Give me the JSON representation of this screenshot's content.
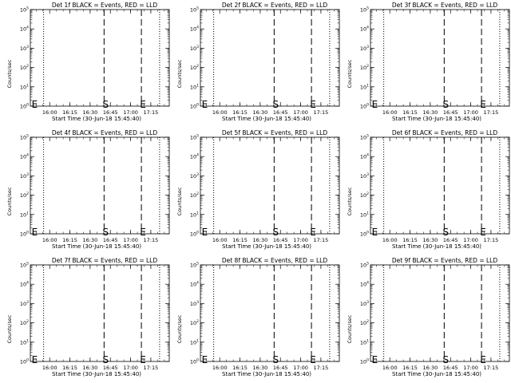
{
  "figure": {
    "background": "#ffffff",
    "foreground": "#000000"
  },
  "chart_data": [
    {
      "type": "line",
      "title": "Det 1f BLACK = Events, RED = LLD",
      "xlabel": "Start Time (30-Jun-18 15:45:40)",
      "ylabel": "Counts/sec",
      "x_tick_labels": [
        "16:00",
        "16:15",
        "16:30",
        "16:45",
        "17:00",
        "17:15"
      ],
      "xlim": [
        "15:45:40",
        "17:28:40"
      ],
      "y_scale": "log",
      "ylim": [
        1,
        100000
      ],
      "y_tick_labels": [
        "10^0",
        "10^1",
        "10^2",
        "10^3",
        "10^4",
        "10^5"
      ],
      "series": [],
      "markers": [
        {
          "label": "E",
          "time": "15:46:00",
          "style": "text"
        },
        {
          "label": "",
          "time": "15:55:30",
          "style": "dotted"
        },
        {
          "label": "S",
          "time": "16:40:20",
          "style": "dashed"
        },
        {
          "label": "E",
          "time": "17:08:00",
          "style": "dashed"
        },
        {
          "label": "",
          "time": "17:21:30",
          "style": "dotted"
        }
      ],
      "grid": false
    },
    {
      "type": "line",
      "title": "Det 2f BLACK = Events, RED = LLD",
      "xlabel": "Start Time (30-Jun-18 15:45:40)",
      "ylabel": "Counts/sec",
      "x_tick_labels": [
        "16:00",
        "16:15",
        "16:30",
        "16:45",
        "17:00",
        "17:15"
      ],
      "xlim": [
        "15:45:40",
        "17:28:40"
      ],
      "y_scale": "log",
      "ylim": [
        1,
        100000
      ],
      "y_tick_labels": [
        "10^0",
        "10^1",
        "10^2",
        "10^3",
        "10^4",
        "10^5"
      ],
      "series": [],
      "markers": [
        {
          "label": "E",
          "time": "15:46:00",
          "style": "text"
        },
        {
          "label": "",
          "time": "15:55:30",
          "style": "dotted"
        },
        {
          "label": "S",
          "time": "16:40:20",
          "style": "dashed"
        },
        {
          "label": "E",
          "time": "17:08:00",
          "style": "dashed"
        },
        {
          "label": "",
          "time": "17:21:30",
          "style": "dotted"
        }
      ],
      "grid": false
    },
    {
      "type": "line",
      "title": "Det 3f BLACK = Events, RED = LLD",
      "xlabel": "Start Time (30-Jun-18 15:45:40)",
      "ylabel": "Counts/sec",
      "x_tick_labels": [
        "16:00",
        "16:15",
        "16:30",
        "16:45",
        "17:00",
        "17:15"
      ],
      "xlim": [
        "15:45:40",
        "17:28:40"
      ],
      "y_scale": "log",
      "ylim": [
        1,
        100000
      ],
      "y_tick_labels": [
        "10^0",
        "10^1",
        "10^2",
        "10^3",
        "10^4",
        "10^5"
      ],
      "series": [],
      "markers": [
        {
          "label": "E",
          "time": "15:46:00",
          "style": "text"
        },
        {
          "label": "",
          "time": "15:55:30",
          "style": "dotted"
        },
        {
          "label": "S",
          "time": "16:40:20",
          "style": "dashed"
        },
        {
          "label": "E",
          "time": "17:08:00",
          "style": "dashed"
        },
        {
          "label": "",
          "time": "17:21:30",
          "style": "dotted"
        }
      ],
      "grid": false
    },
    {
      "type": "line",
      "title": "Det 4f BLACK = Events, RED = LLD",
      "xlabel": "Start Time (30-Jun-18 15:45:40)",
      "ylabel": "Counts/sec",
      "x_tick_labels": [
        "16:00",
        "16:15",
        "16:30",
        "16:45",
        "17:00",
        "17:15"
      ],
      "xlim": [
        "15:45:40",
        "17:28:40"
      ],
      "y_scale": "log",
      "ylim": [
        1,
        100000
      ],
      "y_tick_labels": [
        "10^0",
        "10^1",
        "10^2",
        "10^3",
        "10^4",
        "10^5"
      ],
      "series": [],
      "markers": [
        {
          "label": "E",
          "time": "15:46:00",
          "style": "text"
        },
        {
          "label": "",
          "time": "15:55:30",
          "style": "dotted"
        },
        {
          "label": "S",
          "time": "16:40:20",
          "style": "dashed"
        },
        {
          "label": "E",
          "time": "17:08:00",
          "style": "dashed"
        },
        {
          "label": "",
          "time": "17:21:30",
          "style": "dotted"
        }
      ],
      "grid": false
    },
    {
      "type": "line",
      "title": "Det 5f BLACK = Events, RED = LLD",
      "xlabel": "Start Time (30-Jun-18 15:45:40)",
      "ylabel": "Counts/sec",
      "x_tick_labels": [
        "16:00",
        "16:15",
        "16:30",
        "16:45",
        "17:00",
        "17:15"
      ],
      "xlim": [
        "15:45:40",
        "17:28:40"
      ],
      "y_scale": "log",
      "ylim": [
        1,
        100000
      ],
      "y_tick_labels": [
        "10^0",
        "10^1",
        "10^2",
        "10^3",
        "10^4",
        "10^5"
      ],
      "series": [],
      "markers": [
        {
          "label": "E",
          "time": "15:46:00",
          "style": "text"
        },
        {
          "label": "",
          "time": "15:55:30",
          "style": "dotted"
        },
        {
          "label": "S",
          "time": "16:40:20",
          "style": "dashed"
        },
        {
          "label": "E",
          "time": "17:08:00",
          "style": "dashed"
        },
        {
          "label": "",
          "time": "17:21:30",
          "style": "dotted"
        }
      ],
      "grid": false
    },
    {
      "type": "line",
      "title": "Det 6f BLACK = Events, RED = LLD",
      "xlabel": "Start Time (30-Jun-18 15:45:40)",
      "ylabel": "Counts/sec",
      "x_tick_labels": [
        "16:00",
        "16:15",
        "16:30",
        "16:45",
        "17:00",
        "17:15"
      ],
      "xlim": [
        "15:45:40",
        "17:28:40"
      ],
      "y_scale": "log",
      "ylim": [
        1,
        100000
      ],
      "y_tick_labels": [
        "10^0",
        "10^1",
        "10^2",
        "10^3",
        "10^4",
        "10^5"
      ],
      "series": [],
      "markers": [
        {
          "label": "E",
          "time": "15:46:00",
          "style": "text"
        },
        {
          "label": "",
          "time": "15:55:30",
          "style": "dotted"
        },
        {
          "label": "S",
          "time": "16:40:20",
          "style": "dashed"
        },
        {
          "label": "E",
          "time": "17:08:00",
          "style": "dashed"
        },
        {
          "label": "",
          "time": "17:21:30",
          "style": "dotted"
        }
      ],
      "grid": false
    },
    {
      "type": "line",
      "title": "Det 7f BLACK = Events, RED = LLD",
      "xlabel": "Start Time (30-Jun-18 15:45:40)",
      "ylabel": "Counts/sec",
      "x_tick_labels": [
        "16:00",
        "16:15",
        "16:30",
        "16:45",
        "17:00",
        "17:15"
      ],
      "xlim": [
        "15:45:40",
        "17:28:40"
      ],
      "y_scale": "log",
      "ylim": [
        1,
        100000
      ],
      "y_tick_labels": [
        "10^0",
        "10^1",
        "10^2",
        "10^3",
        "10^4",
        "10^5"
      ],
      "series": [],
      "markers": [
        {
          "label": "E",
          "time": "15:46:00",
          "style": "text"
        },
        {
          "label": "",
          "time": "15:55:30",
          "style": "dotted"
        },
        {
          "label": "S",
          "time": "16:40:20",
          "style": "dashed"
        },
        {
          "label": "E",
          "time": "17:08:00",
          "style": "dashed"
        },
        {
          "label": "",
          "time": "17:21:30",
          "style": "dotted"
        }
      ],
      "grid": false
    },
    {
      "type": "line",
      "title": "Det 8f BLACK = Events, RED = LLD",
      "xlabel": "Start Time (30-Jun-18 15:45:40)",
      "ylabel": "Counts/sec",
      "x_tick_labels": [
        "16:00",
        "16:15",
        "16:30",
        "16:45",
        "17:00",
        "17:15"
      ],
      "xlim": [
        "15:45:40",
        "17:28:40"
      ],
      "y_scale": "log",
      "ylim": [
        1,
        100000
      ],
      "y_tick_labels": [
        "10^0",
        "10^1",
        "10^2",
        "10^3",
        "10^4",
        "10^5"
      ],
      "series": [],
      "markers": [
        {
          "label": "E",
          "time": "15:46:00",
          "style": "text"
        },
        {
          "label": "",
          "time": "15:55:30",
          "style": "dotted"
        },
        {
          "label": "S",
          "time": "16:40:20",
          "style": "dashed"
        },
        {
          "label": "E",
          "time": "17:08:00",
          "style": "dashed"
        },
        {
          "label": "",
          "time": "17:21:30",
          "style": "dotted"
        }
      ],
      "grid": false
    },
    {
      "type": "line",
      "title": "Det 9f BLACK = Events, RED = LLD",
      "xlabel": "Start Time (30-Jun-18 15:45:40)",
      "ylabel": "Counts/sec",
      "x_tick_labels": [
        "16:00",
        "16:15",
        "16:30",
        "16:45",
        "17:00",
        "17:15"
      ],
      "xlim": [
        "15:45:40",
        "17:28:40"
      ],
      "y_scale": "log",
      "ylim": [
        1,
        100000
      ],
      "y_tick_labels": [
        "10^0",
        "10^1",
        "10^2",
        "10^3",
        "10^4",
        "10^5"
      ],
      "series": [],
      "markers": [
        {
          "label": "E",
          "time": "15:46:00",
          "style": "text"
        },
        {
          "label": "",
          "time": "15:55:30",
          "style": "dotted"
        },
        {
          "label": "S",
          "time": "16:40:20",
          "style": "dashed"
        },
        {
          "label": "E",
          "time": "17:08:00",
          "style": "dashed"
        },
        {
          "label": "",
          "time": "17:21:30",
          "style": "dotted"
        }
      ],
      "grid": false
    }
  ]
}
